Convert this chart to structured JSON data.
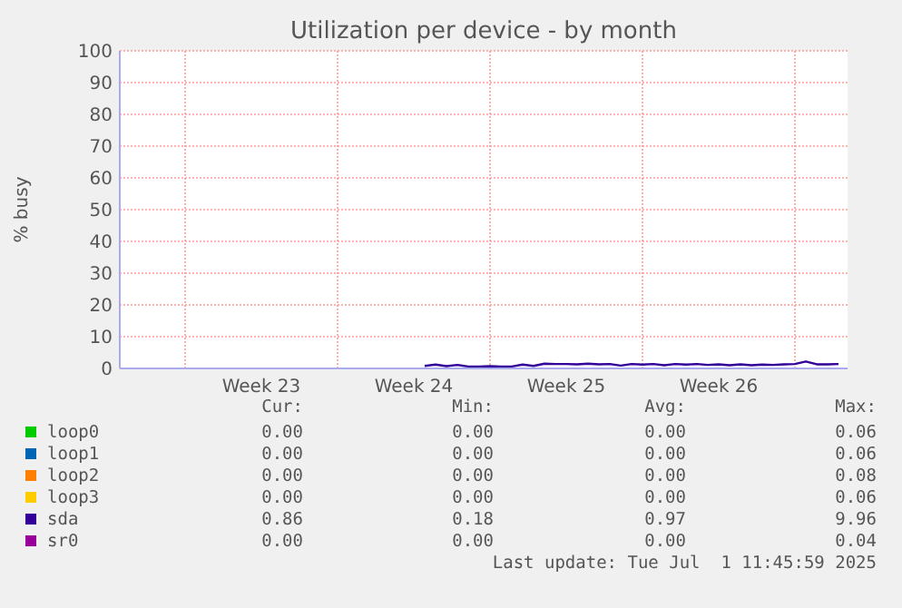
{
  "chart_data": {
    "type": "line",
    "title": "Utilization per device - by month",
    "ylabel": "% busy",
    "categories": [
      null,
      null,
      null,
      null,
      null,
      null,
      null,
      null,
      null,
      null,
      null,
      null,
      null,
      "Week 23",
      null,
      null,
      null,
      null,
      null,
      null,
      null,
      null,
      null,
      null,
      null,
      null,
      null,
      "Week 24",
      null,
      null,
      null,
      null,
      null,
      null,
      null,
      null,
      null,
      null,
      null,
      null,
      null,
      "Week 25",
      null,
      null,
      null,
      null,
      null,
      null,
      null,
      null,
      null,
      null,
      null,
      null,
      null,
      "Week 26",
      null,
      null,
      null,
      null,
      null,
      null,
      null,
      null,
      null,
      null,
      null
    ],
    "ylim": [
      0,
      100
    ],
    "yticks": [
      0,
      10,
      20,
      30,
      40,
      50,
      60,
      70,
      80,
      90,
      100
    ],
    "grid": true,
    "legend": "bottom",
    "series": [
      {
        "name": "loop0",
        "color": "#00cc00",
        "values": [
          null,
          null,
          null,
          null,
          null,
          null,
          null,
          null,
          null,
          null,
          null,
          null,
          null,
          null,
          null,
          null,
          null,
          null,
          null,
          null,
          null,
          null,
          null,
          null,
          null,
          null,
          null,
          null,
          null,
          null,
          null,
          null,
          null,
          null,
          null,
          null,
          null,
          null,
          null,
          null,
          null,
          null,
          null,
          null,
          null,
          null,
          null,
          null,
          null,
          null,
          null,
          null,
          null,
          null,
          null,
          null,
          null,
          null,
          null,
          null,
          null,
          null,
          null,
          null,
          null,
          null,
          null
        ]
      },
      {
        "name": "loop1",
        "color": "#0066b3",
        "values": [
          null,
          null,
          null,
          null,
          null,
          null,
          null,
          null,
          null,
          null,
          null,
          null,
          null,
          null,
          null,
          null,
          null,
          null,
          null,
          null,
          null,
          null,
          null,
          null,
          null,
          null,
          null,
          null,
          null,
          null,
          null,
          null,
          null,
          null,
          null,
          null,
          null,
          null,
          null,
          null,
          null,
          null,
          null,
          null,
          null,
          null,
          null,
          null,
          null,
          null,
          null,
          null,
          null,
          null,
          null,
          null,
          null,
          null,
          null,
          null,
          null,
          null,
          null,
          null,
          null,
          null,
          null
        ]
      },
      {
        "name": "loop2",
        "color": "#ff8000",
        "values": [
          null,
          null,
          null,
          null,
          null,
          null,
          null,
          null,
          null,
          null,
          null,
          null,
          null,
          null,
          null,
          null,
          null,
          null,
          null,
          null,
          null,
          null,
          null,
          null,
          null,
          null,
          null,
          null,
          null,
          null,
          null,
          null,
          null,
          null,
          null,
          null,
          null,
          null,
          null,
          null,
          null,
          null,
          null,
          null,
          null,
          null,
          null,
          null,
          null,
          null,
          null,
          null,
          null,
          null,
          null,
          null,
          null,
          null,
          null,
          null,
          null,
          null,
          null,
          null,
          null,
          null,
          null
        ]
      },
      {
        "name": "loop3",
        "color": "#ffcc00",
        "values": [
          null,
          null,
          null,
          null,
          null,
          null,
          null,
          null,
          null,
          null,
          null,
          null,
          null,
          null,
          null,
          null,
          null,
          null,
          null,
          null,
          null,
          null,
          null,
          null,
          null,
          null,
          null,
          null,
          null,
          null,
          null,
          null,
          null,
          null,
          null,
          null,
          null,
          null,
          null,
          null,
          null,
          null,
          null,
          null,
          null,
          null,
          null,
          null,
          null,
          null,
          null,
          null,
          null,
          null,
          null,
          null,
          null,
          null,
          null,
          null,
          null,
          null,
          null,
          null,
          null,
          null,
          null
        ]
      },
      {
        "name": "sda",
        "color": "#330099",
        "values": [
          null,
          null,
          null,
          null,
          null,
          null,
          null,
          null,
          null,
          null,
          null,
          null,
          null,
          null,
          null,
          null,
          null,
          null,
          null,
          null,
          null,
          null,
          null,
          null,
          null,
          null,
          null,
          null,
          0.8,
          1.2,
          0.7,
          1.1,
          0.6,
          0.6,
          0.7,
          0.6,
          0.6,
          1.2,
          0.8,
          1.5,
          1.4,
          1.4,
          1.3,
          1.5,
          1.3,
          1.4,
          0.9,
          1.4,
          1.2,
          1.4,
          1.0,
          1.4,
          1.2,
          1.4,
          1.1,
          1.3,
          1.0,
          1.3,
          1.0,
          1.2,
          1.1,
          1.3,
          1.4,
          2.2,
          1.3,
          1.3,
          1.4
        ]
      },
      {
        "name": "sr0",
        "color": "#990099",
        "values": [
          null,
          null,
          null,
          null,
          null,
          null,
          null,
          null,
          null,
          null,
          null,
          null,
          null,
          null,
          null,
          null,
          null,
          null,
          null,
          null,
          null,
          null,
          null,
          null,
          null,
          null,
          null,
          null,
          null,
          null,
          null,
          null,
          null,
          null,
          null,
          null,
          null,
          null,
          null,
          null,
          null,
          null,
          null,
          null,
          null,
          null,
          null,
          null,
          null,
          null,
          null,
          null,
          null,
          null,
          null,
          null,
          null,
          null,
          null,
          null,
          null,
          null,
          null,
          null,
          null,
          null,
          null
        ]
      }
    ],
    "annotations": [
      "Cur:",
      "Min:",
      "Avg:",
      "Max:",
      "0.00",
      "0.00",
      "0.00",
      "0.06",
      "0.00",
      "0.00",
      "0.00",
      "0.06",
      "0.00",
      "0.00",
      "0.00",
      "0.08",
      "0.00",
      "0.00",
      "0.00",
      "0.06",
      "0.86",
      "0.18",
      "0.97",
      "9.96",
      "0.00",
      "0.00",
      "0.00",
      "0.04",
      "Last update: Tue Jul  1 11:45:59 2025"
    ]
  }
}
